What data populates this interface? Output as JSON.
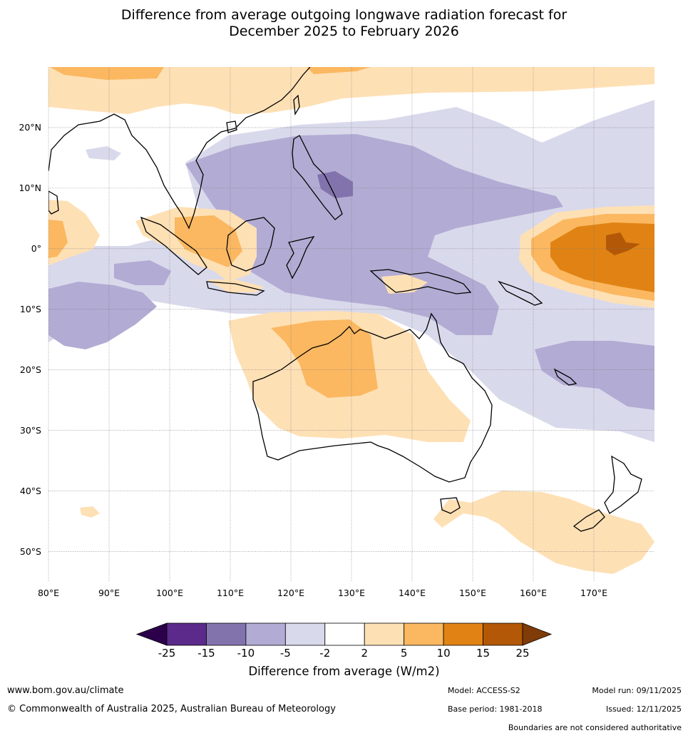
{
  "title": {
    "line1": "Difference from average outgoing longwave radiation forecast for",
    "line2": "December 2025 to February 2026"
  },
  "map": {
    "lon_range": [
      80,
      180
    ],
    "lat_range": [
      -55,
      30
    ],
    "lat_labels": [
      "20°N",
      "10°N",
      "0°",
      "10°S",
      "20°S",
      "30°S",
      "40°S",
      "50°S"
    ],
    "lat_values": [
      20,
      10,
      0,
      -10,
      -20,
      -30,
      -40,
      -50
    ],
    "lon_labels": [
      "80°E",
      "90°E",
      "100°E",
      "110°E",
      "120°E",
      "130°E",
      "140°E",
      "150°E",
      "160°E",
      "170°E"
    ],
    "lon_values": [
      80,
      90,
      100,
      110,
      120,
      130,
      140,
      150,
      160,
      170
    ]
  },
  "colorbar": {
    "ticks": [
      "-25",
      "-15",
      "-10",
      "-5",
      "-2",
      "2",
      "5",
      "10",
      "15",
      "25"
    ],
    "colors": [
      "#5b2a8a",
      "#8373ad",
      "#b2abd3",
      "#d9d9ec",
      "#ffffff",
      "#fee0b5",
      "#fbb861",
      "#e08314",
      "#b35806"
    ],
    "under_color": "#2d004b",
    "over_color": "#7f3b08",
    "label": "Difference from average (W/m2)"
  },
  "footer": {
    "url": "www.bom.gov.au/climate",
    "copyright": "© Commonwealth of Australia 2025, Australian Bureau of Meteorology",
    "model": "Model: ACCESS-S2",
    "base_period": "Base period: 1981-2018",
    "model_run": "Model run: 09/11/2025",
    "issued": "Issued: 12/11/2025",
    "disclaimer": "Boundaries are not considered authoritative"
  }
}
